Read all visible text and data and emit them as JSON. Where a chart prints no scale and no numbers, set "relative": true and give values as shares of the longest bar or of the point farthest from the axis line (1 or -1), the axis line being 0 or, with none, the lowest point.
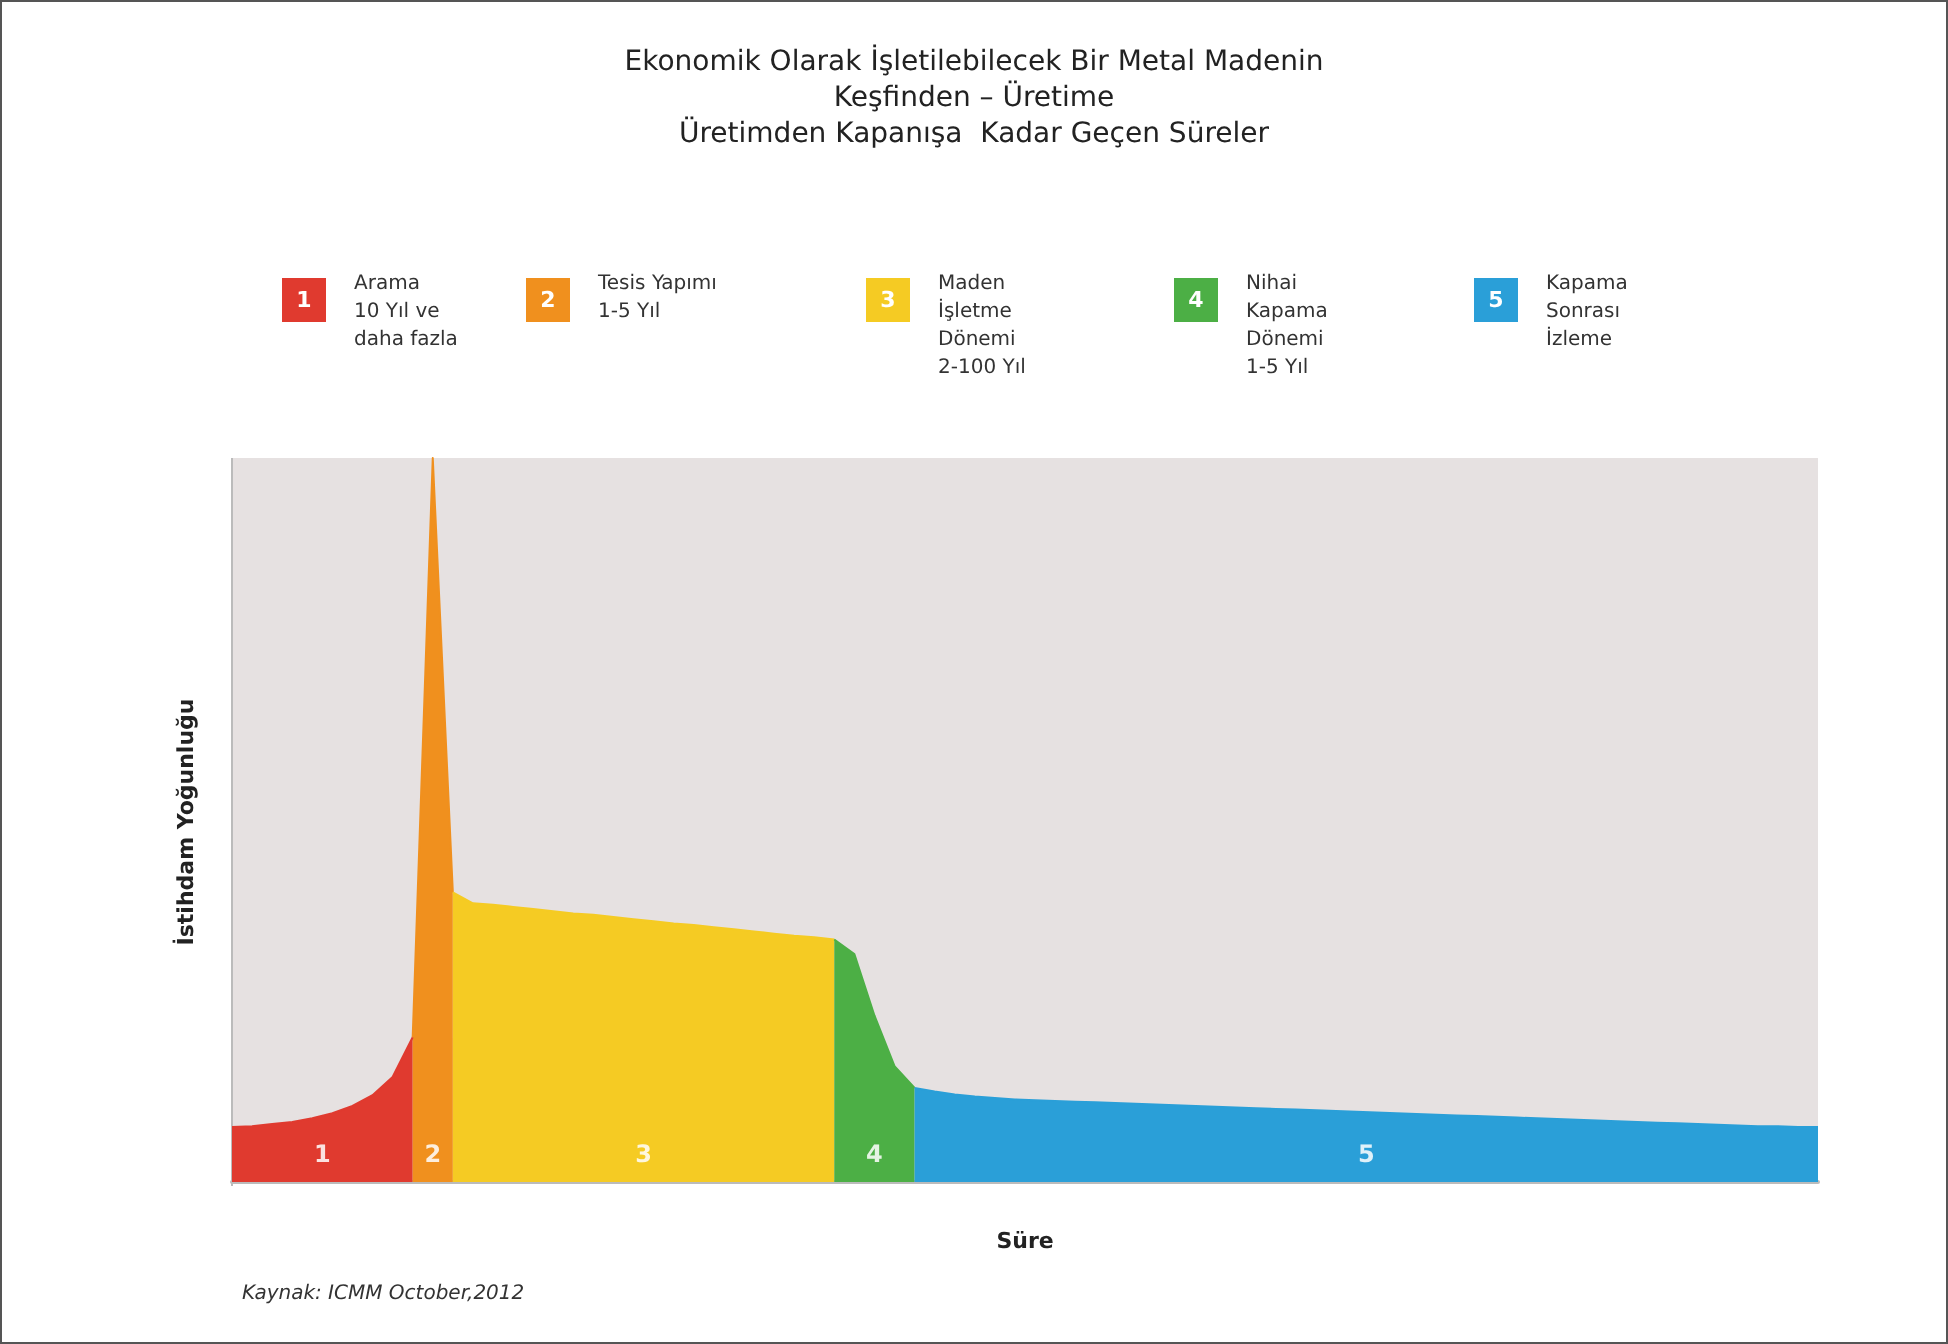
{
  "chart_data": {
    "type": "area",
    "relative": true,
    "title": "Ekonomik Olarak İşletilebilecek Bir Metal Madenin\nKeşfinden – Üretime\nÜretimden Kapanışa  Kadar Geçen Süreler",
    "xlabel": "Süre",
    "ylabel": "İstihdam Yoğunluğu",
    "legend": "top",
    "grid": false,
    "categories": [
      null,
      null,
      null,
      null,
      null,
      null,
      null,
      null,
      null,
      null,
      null,
      null,
      null,
      null,
      null,
      null,
      null,
      null,
      null,
      null,
      null,
      null,
      null,
      null,
      null,
      null,
      null,
      null,
      null,
      null,
      null,
      null,
      null,
      null,
      null,
      null,
      null,
      null,
      null,
      null,
      null,
      null,
      null,
      null,
      null,
      null,
      null,
      null,
      null,
      null,
      null,
      null,
      null,
      null,
      null,
      null,
      null,
      null,
      null,
      null,
      null,
      null,
      null,
      null,
      null,
      null,
      null,
      null,
      null,
      null,
      null,
      null,
      null,
      null,
      null,
      null,
      null,
      null,
      null,
      null
    ],
    "series": [
      {
        "name": "Arama\n10 Yıl ve\ndaha fazla",
        "color": "#e03a2f",
        "values": [
          0.076,
          0.077,
          0.08,
          0.083,
          0.088,
          0.095,
          0.105,
          0.12,
          0.145,
          0.2,
          null,
          null,
          null,
          null,
          null,
          null,
          null,
          null,
          null,
          null,
          null,
          null,
          null,
          null,
          null,
          null,
          null,
          null,
          null,
          null,
          null,
          null,
          null,
          null,
          null,
          null,
          null,
          null,
          null,
          null,
          null,
          null,
          null,
          null,
          null,
          null,
          null,
          null,
          null,
          null,
          null,
          null,
          null,
          null,
          null,
          null,
          null,
          null,
          null,
          null,
          null,
          null,
          null,
          null,
          null,
          null,
          null,
          null,
          null,
          null,
          null,
          null,
          null,
          null,
          null,
          null,
          null,
          null,
          null,
          null
        ]
      },
      {
        "name": "Tesis Yapımı\n1-5 Yıl",
        "color": "#f0901e",
        "values": [
          null,
          null,
          null,
          null,
          null,
          null,
          null,
          null,
          null,
          0.2,
          1,
          0.4,
          null,
          null,
          null,
          null,
          null,
          null,
          null,
          null,
          null,
          null,
          null,
          null,
          null,
          null,
          null,
          null,
          null,
          null,
          null,
          null,
          null,
          null,
          null,
          null,
          null,
          null,
          null,
          null,
          null,
          null,
          null,
          null,
          null,
          null,
          null,
          null,
          null,
          null,
          null,
          null,
          null,
          null,
          null,
          null,
          null,
          null,
          null,
          null,
          null,
          null,
          null,
          null,
          null,
          null,
          null,
          null,
          null,
          null,
          null,
          null,
          null,
          null,
          null,
          null,
          null,
          null,
          null,
          null
        ]
      },
      {
        "name": "Maden\nİşletme\nDönemi\n2-100 Yıl",
        "color": "#f5cb23",
        "values": [
          null,
          null,
          null,
          null,
          null,
          null,
          null,
          null,
          null,
          null,
          null,
          0.4,
          0.385,
          0.383,
          0.38,
          0.377,
          0.374,
          0.371,
          0.369,
          0.366,
          0.363,
          0.36,
          0.357,
          0.355,
          0.352,
          0.349,
          0.346,
          0.343,
          0.34,
          0.338,
          0.335,
          null,
          null,
          null,
          null,
          null,
          null,
          null,
          null,
          null,
          null,
          null,
          null,
          null,
          null,
          null,
          null,
          null,
          null,
          null,
          null,
          null,
          null,
          null,
          null,
          null,
          null,
          null,
          null,
          null,
          null,
          null,
          null,
          null,
          null,
          null,
          null,
          null,
          null,
          null,
          null,
          null,
          null,
          null,
          null,
          null,
          null,
          null,
          null,
          null
        ]
      },
      {
        "name": "Nihai\nKapama\nDönemi\n1-5 Yıl",
        "color": "#4caf45",
        "values": [
          null,
          null,
          null,
          null,
          null,
          null,
          null,
          null,
          null,
          null,
          null,
          null,
          null,
          null,
          null,
          null,
          null,
          null,
          null,
          null,
          null,
          null,
          null,
          null,
          null,
          null,
          null,
          null,
          null,
          null,
          0.335,
          0.315,
          0.23,
          0.16,
          0.13,
          null,
          null,
          null,
          null,
          null,
          null,
          null,
          null,
          null,
          null,
          null,
          null,
          null,
          null,
          null,
          null,
          null,
          null,
          null,
          null,
          null,
          null,
          null,
          null,
          null,
          null,
          null,
          null,
          null,
          null,
          null,
          null,
          null,
          null,
          null,
          null,
          null,
          null,
          null,
          null,
          null,
          null,
          null,
          null,
          null
        ]
      },
      {
        "name": "Kapama\nSonrası\nİzleme",
        "color": "#2a9fd8",
        "values": [
          null,
          null,
          null,
          null,
          null,
          null,
          null,
          null,
          null,
          null,
          null,
          null,
          null,
          null,
          null,
          null,
          null,
          null,
          null,
          null,
          null,
          null,
          null,
          null,
          null,
          null,
          null,
          null,
          null,
          null,
          null,
          null,
          null,
          null,
          0.13,
          0.125,
          0.121,
          0.118,
          0.116,
          0.114,
          0.113,
          0.112,
          0.111,
          0.11,
          0.109,
          0.108,
          0.107,
          0.106,
          0.105,
          0.104,
          0.103,
          0.102,
          0.101,
          0.1,
          0.099,
          0.098,
          0.097,
          0.096,
          0.095,
          0.094,
          0.093,
          0.092,
          0.091,
          0.09,
          0.089,
          0.088,
          0.087,
          0.086,
          0.085,
          0.084,
          0.083,
          0.082,
          0.081,
          0.08,
          0.079,
          0.078,
          0.077,
          0.077,
          0.076,
          0.076
        ]
      }
    ],
    "annotations": [
      "1",
      "2",
      "3",
      "4",
      "5",
      "Kaynak: ICMM October,2012"
    ]
  }
}
